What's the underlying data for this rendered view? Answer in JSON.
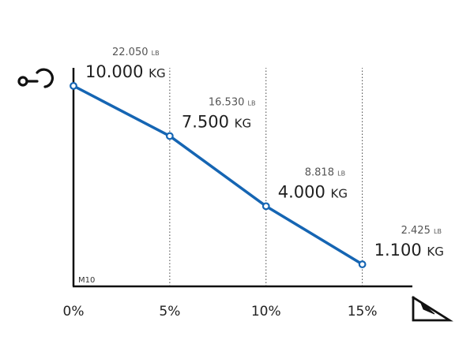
{
  "chart_data": {
    "type": "line",
    "model_label": "M10",
    "x": [
      0,
      5,
      10,
      15
    ],
    "x_tick_labels": [
      "0%",
      "5%",
      "10%",
      "15%"
    ],
    "xlim": [
      0,
      17.6
    ],
    "ylim": [
      0,
      10900
    ],
    "y_axis_icon": "crane-hook-icon",
    "x_axis_icon": "incline-slope-icon",
    "grid": "vertical-dotted",
    "line_color": "#1565b3",
    "series": [
      {
        "values_kg": [
          10000,
          7500,
          4000,
          1100
        ],
        "kg_labels": [
          "10.000",
          "7.500",
          "4.000",
          "1.100"
        ],
        "lb_labels": [
          "22.050",
          "16.530",
          "8.818",
          "2.425"
        ]
      }
    ],
    "units": {
      "kg": "KG",
      "lb": "LB"
    }
  }
}
